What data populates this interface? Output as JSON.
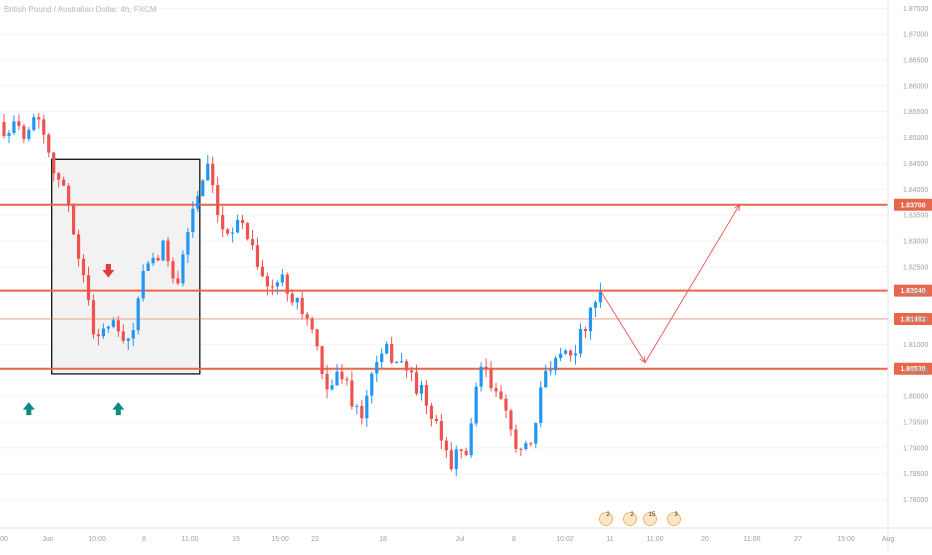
{
  "title": "British Pound / Australian Dollar, 4h, FXCM",
  "chart_data": {
    "type": "candlestick",
    "title": "British Pound / Australian Dollar, 4h, FXCM",
    "up_color": "#2196f3",
    "down_color": "#ef5350",
    "level_color": "#e8674a",
    "ylim": [
      1.7745,
      1.8766
    ],
    "price_ticks": [
      "1.87500",
      "1.87000",
      "1.86500",
      "1.86000",
      "1.85500",
      "1.85000",
      "1.84500",
      "1.84000",
      "1.83500",
      "1.83000",
      "1.82500",
      "1.82000",
      "1.81500",
      "1.81000",
      "1.80500",
      "1.80000",
      "1.79500",
      "1.79000",
      "1.78500",
      "1.78000"
    ],
    "time_ticks": [
      ":00",
      "Jun",
      "10:00",
      "8",
      "11:00",
      "15",
      "15:00",
      "22",
      "18",
      "Jul",
      "8",
      "10:02",
      "11",
      "11:00",
      "20",
      "11:00",
      "27",
      "15:00",
      "Aug"
    ],
    "levels": [
      {
        "label": "1.83700",
        "value": 1.837,
        "bold": true
      },
      {
        "label": "1.82040",
        "value": 1.8204,
        "bold": true
      },
      {
        "label": "1.81492",
        "value": 1.81492,
        "bold": false
      },
      {
        "label": "1.80530",
        "value": 1.8053,
        "bold": true
      }
    ],
    "box": {
      "t_start": 10,
      "t_end": 39,
      "high": 1.8458,
      "low": 1.8043
    },
    "down_arrow": {
      "t": 21,
      "price": 1.824
    },
    "up_arrows": [
      {
        "t": 5,
        "price": 1.8
      },
      {
        "t": 23,
        "price": 1.8
      }
    ],
    "projection": [
      {
        "t": 120,
        "price": 1.8204
      },
      {
        "t": 129,
        "price": 1.8065
      },
      {
        "t": 148,
        "price": 1.837
      }
    ],
    "events": [
      "2",
      "2",
      "15",
      "3"
    ],
    "anchor_closes": [
      [
        0,
        1.852
      ],
      [
        4,
        1.8515
      ],
      [
        7,
        1.8545
      ],
      [
        10,
        1.8445
      ],
      [
        13,
        1.837
      ],
      [
        16,
        1.823
      ],
      [
        18,
        1.8125
      ],
      [
        22,
        1.8135
      ],
      [
        25,
        1.8095
      ],
      [
        28,
        1.823
      ],
      [
        32,
        1.8285
      ],
      [
        35,
        1.8225
      ],
      [
        38,
        1.8365
      ],
      [
        41,
        1.8435
      ],
      [
        44,
        1.8305
      ],
      [
        47,
        1.8345
      ],
      [
        50,
        1.8295
      ],
      [
        53,
        1.8205
      ],
      [
        56,
        1.8225
      ],
      [
        59,
        1.8185
      ],
      [
        62,
        1.8125
      ],
      [
        64,
        1.8035
      ],
      [
        66,
        1.8025
      ],
      [
        68,
        1.8045
      ],
      [
        70,
        1.7995
      ],
      [
        72,
        1.7955
      ],
      [
        74,
        1.8045
      ],
      [
        77,
        1.8085
      ],
      [
        80,
        1.8065
      ],
      [
        84,
        1.8005
      ],
      [
        87,
        1.7935
      ],
      [
        90,
        1.7875
      ],
      [
        93,
        1.7895
      ],
      [
        96,
        1.8055
      ],
      [
        99,
        1.8005
      ],
      [
        102,
        1.7935
      ],
      [
        104,
        1.7895
      ],
      [
        106,
        1.7895
      ],
      [
        109,
        1.8055
      ],
      [
        112,
        1.8085
      ],
      [
        115,
        1.8095
      ],
      [
        118,
        1.8155
      ],
      [
        120,
        1.8195
      ]
    ]
  }
}
